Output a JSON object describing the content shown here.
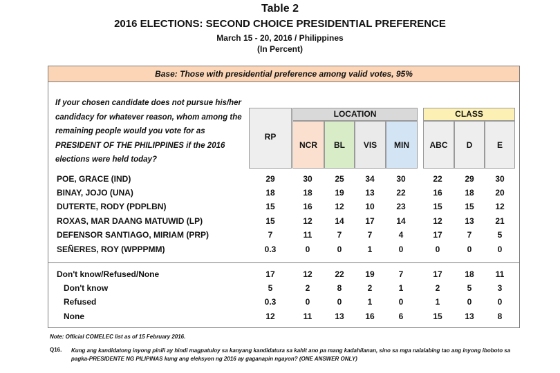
{
  "header": {
    "table_label": "Table 2",
    "title": "2016 ELECTIONS: SECOND CHOICE PRESIDENTIAL PREFERENCE",
    "date_place": "March 15 - 20, 2016 / Philippines",
    "unit": "(In Percent)"
  },
  "base_text": "Base: Those with presidential preference among valid votes, 95%",
  "question": "If your chosen candidate does not pursue his/her candidacy for whatever reason, whom among the remaining people would you vote for as PRESIDENT OF THE PHILIPPINES if the 2016 elections were held today?",
  "group_headers": {
    "location": "LOCATION",
    "class": "CLASS"
  },
  "colors": {
    "base_band": "#fbd5b5",
    "location_header": "#d9d9d9",
    "ncr": "#fbe0d0",
    "bl": "#d8ecc8",
    "vis": "#eaeaea",
    "min": "#d3e4f5",
    "class_header": "#fdf0b4",
    "class_cols": "#eeeeee",
    "rp_col": "#eeeeee"
  },
  "chart_data": {
    "type": "table",
    "columns": [
      "RP",
      "NCR",
      "BL",
      "VIS",
      "MIN",
      "ABC",
      "D",
      "E"
    ],
    "rows": [
      {
        "label": "POE, GRACE (IND)",
        "values": [
          "29",
          "30",
          "25",
          "34",
          "30",
          "22",
          "29",
          "30"
        ]
      },
      {
        "label": "BINAY, JOJO (UNA)",
        "values": [
          "18",
          "18",
          "19",
          "13",
          "22",
          "16",
          "18",
          "20"
        ]
      },
      {
        "label": "DUTERTE, RODY (PDPLBN)",
        "values": [
          "15",
          "16",
          "12",
          "10",
          "23",
          "15",
          "15",
          "12"
        ]
      },
      {
        "label": "ROXAS, MAR DAANG MATUWID (LP)",
        "values": [
          "15",
          "12",
          "14",
          "17",
          "14",
          "12",
          "13",
          "21"
        ]
      },
      {
        "label": "DEFENSOR SANTIAGO, MIRIAM (PRP)",
        "values": [
          "7",
          "11",
          "7",
          "7",
          "4",
          "17",
          "7",
          "5"
        ]
      },
      {
        "label": "SEÑERES, ROY (WPPPMM)",
        "values": [
          "0.3",
          "0",
          "0",
          "1",
          "0",
          "0",
          "0",
          "0"
        ]
      },
      {
        "label": "Don't know/Refused/None",
        "values": [
          "17",
          "12",
          "22",
          "19",
          "7",
          "17",
          "18",
          "11"
        ]
      },
      {
        "label": "Don't know",
        "values": [
          "5",
          "2",
          "8",
          "2",
          "1",
          "2",
          "5",
          "3"
        ]
      },
      {
        "label": "Refused",
        "values": [
          "0.3",
          "0",
          "0",
          "1",
          "0",
          "1",
          "0",
          "0"
        ]
      },
      {
        "label": "None",
        "values": [
          "12",
          "11",
          "13",
          "16",
          "6",
          "15",
          "13",
          "8"
        ]
      }
    ]
  },
  "note": "Note: Official COMELEC list as of 15 February 2016.",
  "q16_label": "Q16.",
  "q16_text": "Kung ang kandidatong inyong pinili ay hindi magpatuloy sa kanyang kandidatura sa kahit ano pa mang kadahilanan, sino sa mga nalalabing tao ang inyong iboboto sa pagka-PRESIDENTE NG PILIPINAS kung ang eleksyon ng 2016 ay gaganapin ngayon? (ONE ANSWER ONLY)"
}
